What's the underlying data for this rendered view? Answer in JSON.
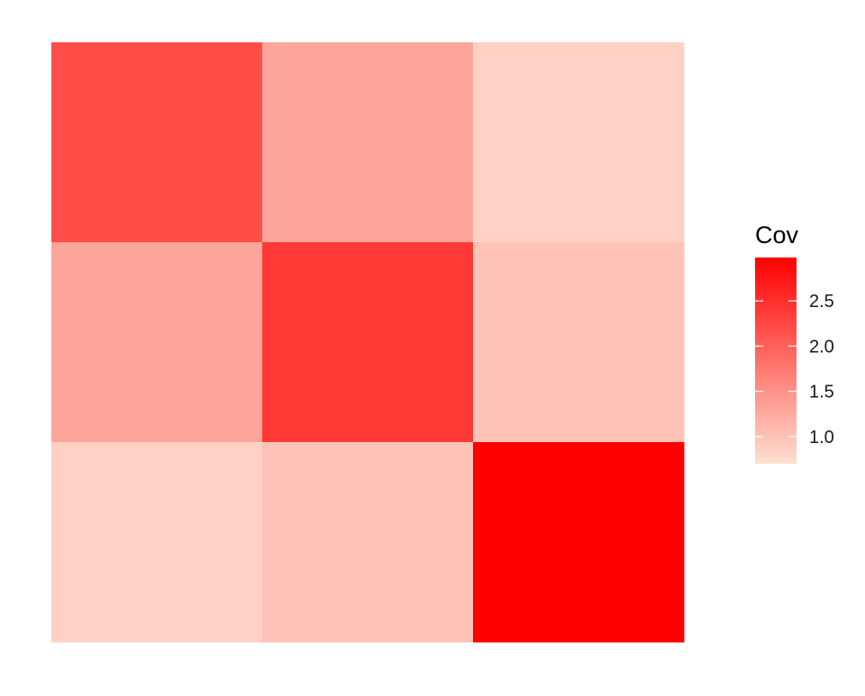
{
  "chart_data": {
    "type": "heatmap",
    "title": "",
    "xlabel": "",
    "ylabel": "",
    "grid": false,
    "axes_visible": false,
    "legend_placement": "right",
    "rows_top_to_bottom": [
      [
        2.2,
        1.3,
        0.85
      ],
      [
        1.3,
        2.4,
        1.0
      ],
      [
        0.85,
        1.0,
        2.98
      ]
    ],
    "legend": {
      "title": "Cov",
      "ticks": [
        1.0,
        1.5,
        2.0,
        2.5
      ],
      "tick_labels": [
        "1.0",
        "1.5",
        "2.0",
        "2.5"
      ],
      "min": 0.7,
      "max": 2.98
    },
    "colors": {
      "low": "#fee0d2",
      "high": "#ff0000"
    }
  }
}
